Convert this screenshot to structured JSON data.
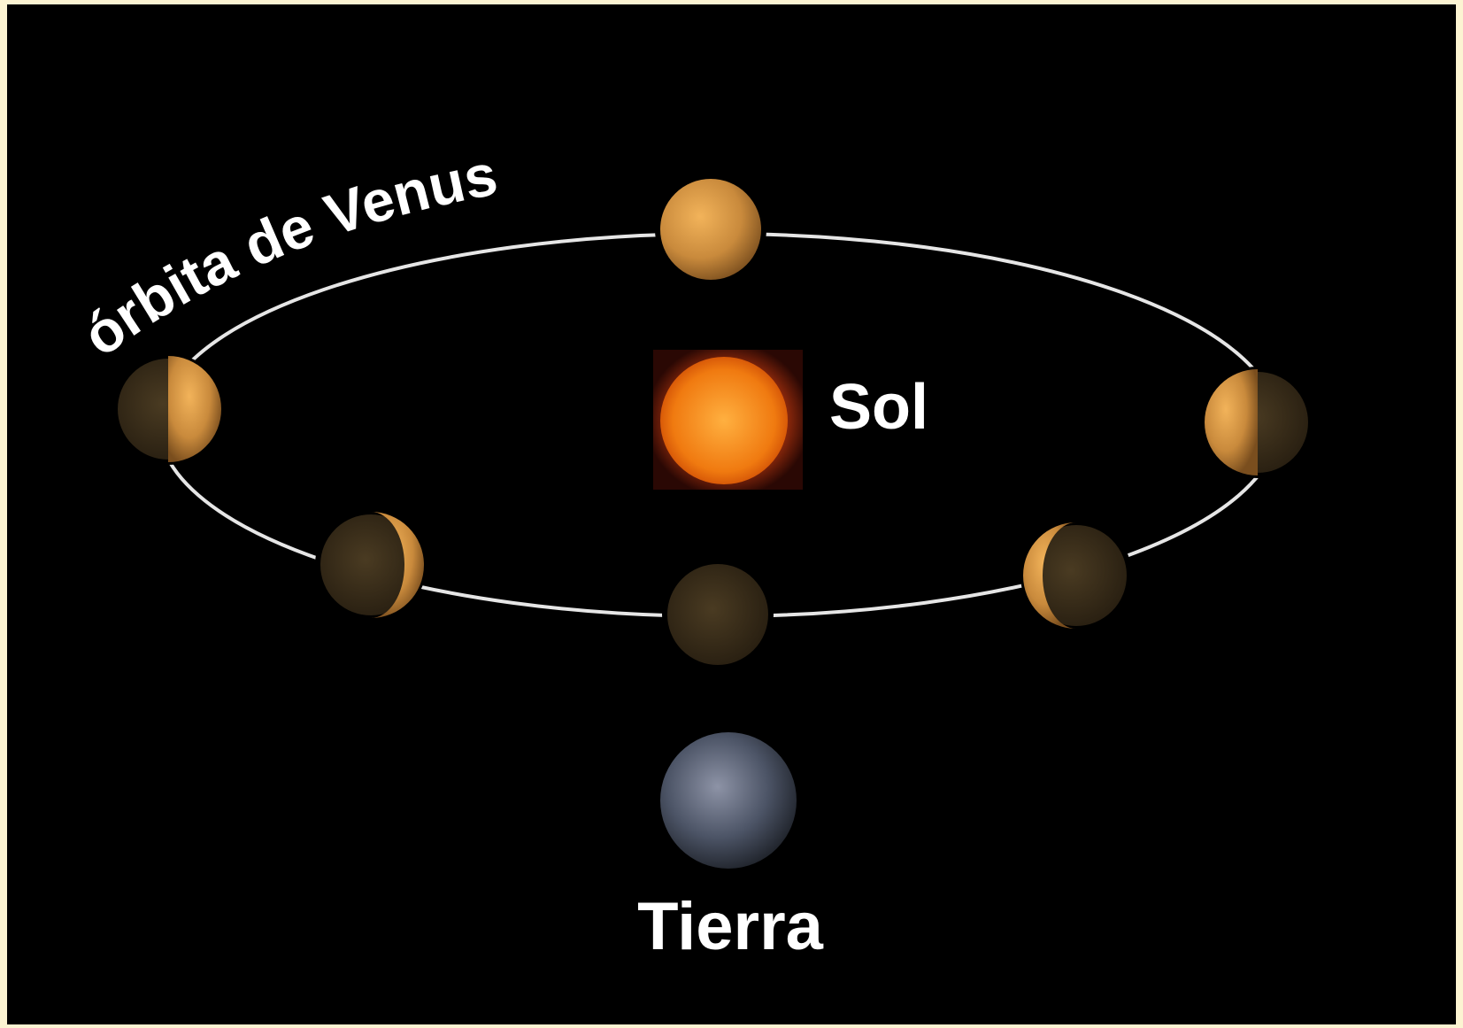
{
  "labels": {
    "orbit": "órbita de Venus",
    "sun": "Sol",
    "earth": "Tierra"
  }
}
